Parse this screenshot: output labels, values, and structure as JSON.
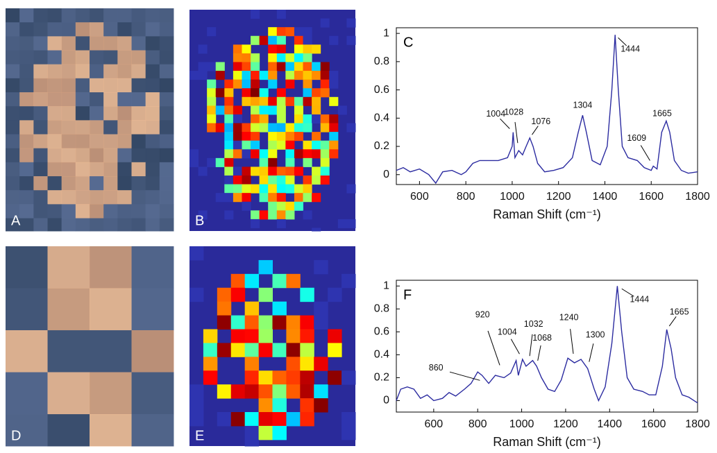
{
  "panels": {
    "labels": [
      "A",
      "B",
      "D",
      "E"
    ]
  },
  "chart_data": [
    {
      "type": "line",
      "title": "C",
      "xlabel": "Raman Shift (cm⁻¹)",
      "color": "#2b2ba0",
      "x": [
        500,
        530,
        560,
        600,
        640,
        670,
        700,
        740,
        780,
        800,
        830,
        860,
        900,
        940,
        980,
        1000,
        1004,
        1012,
        1028,
        1045,
        1060,
        1076,
        1090,
        1110,
        1140,
        1180,
        1220,
        1260,
        1285,
        1304,
        1320,
        1345,
        1380,
        1410,
        1430,
        1444,
        1458,
        1475,
        1500,
        1540,
        1570,
        1600,
        1609,
        1625,
        1645,
        1665,
        1680,
        1700,
        1730,
        1760,
        1800
      ],
      "values": [
        0.03,
        0.05,
        0.02,
        0.04,
        0.0,
        -0.06,
        0.02,
        0.03,
        0.0,
        0.02,
        0.08,
        0.1,
        0.1,
        0.1,
        0.12,
        0.2,
        0.3,
        0.12,
        0.17,
        0.14,
        0.2,
        0.26,
        0.2,
        0.08,
        0.02,
        0.03,
        0.05,
        0.12,
        0.3,
        0.42,
        0.3,
        0.1,
        0.07,
        0.2,
        0.6,
        0.99,
        0.6,
        0.2,
        0.12,
        0.1,
        0.05,
        0.03,
        0.06,
        0.04,
        0.3,
        0.38,
        0.3,
        0.1,
        0.03,
        0.01,
        0.02
      ],
      "xlim": [
        500,
        1800
      ],
      "ylim": [
        -0.07,
        1.04
      ],
      "xticks": [
        600,
        800,
        1000,
        1200,
        1400,
        1600,
        1800
      ],
      "yticks": [
        0,
        0.2,
        0.4,
        0.6,
        0.8,
        1
      ],
      "annotations": [
        {
          "text": "1004",
          "x": 1004,
          "y": 0.3
        },
        {
          "text": "1028",
          "x": 1028,
          "y": 0.17
        },
        {
          "text": "1076",
          "x": 1076,
          "y": 0.26
        },
        {
          "text": "1304",
          "x": 1304,
          "y": 0.42
        },
        {
          "text": "1444",
          "x": 1444,
          "y": 0.99
        },
        {
          "text": "1609",
          "x": 1609,
          "y": 0.06
        },
        {
          "text": "1665",
          "x": 1665,
          "y": 0.38
        }
      ]
    },
    {
      "type": "line",
      "title": "F",
      "xlabel": "Raman Shift (cm⁻¹)",
      "color": "#2b2ba0",
      "x": [
        430,
        450,
        480,
        510,
        540,
        570,
        600,
        640,
        670,
        700,
        740,
        770,
        800,
        820,
        850,
        880,
        920,
        950,
        975,
        985,
        1004,
        1020,
        1032,
        1050,
        1068,
        1090,
        1120,
        1150,
        1180,
        1210,
        1240,
        1270,
        1300,
        1330,
        1350,
        1380,
        1410,
        1435,
        1455,
        1480,
        1510,
        1550,
        1580,
        1610,
        1640,
        1660,
        1680,
        1700,
        1730,
        1760,
        1800
      ],
      "values": [
        0.0,
        0.1,
        0.12,
        0.1,
        0.02,
        0.05,
        0.0,
        0.02,
        0.07,
        0.04,
        0.1,
        0.15,
        0.25,
        0.22,
        0.15,
        0.22,
        0.2,
        0.24,
        0.35,
        0.22,
        0.36,
        0.3,
        0.32,
        0.35,
        0.3,
        0.2,
        0.1,
        0.08,
        0.18,
        0.37,
        0.33,
        0.36,
        0.28,
        0.1,
        0.0,
        0.12,
        0.5,
        1.0,
        0.6,
        0.2,
        0.1,
        0.08,
        0.05,
        0.05,
        0.3,
        0.62,
        0.45,
        0.2,
        0.05,
        0.03,
        -0.02
      ],
      "xlim": [
        430,
        1800
      ],
      "ylim": [
        -0.1,
        1.05
      ],
      "xticks": [
        600,
        800,
        1000,
        1200,
        1400,
        1600,
        1800
      ],
      "yticks": [
        0,
        0.2,
        0.4,
        0.6,
        0.8,
        1
      ],
      "annotations": [
        {
          "text": "860",
          "x": 860,
          "y": 0.15
        },
        {
          "text": "920",
          "x": 920,
          "y": 0.2
        },
        {
          "text": "1004",
          "x": 1004,
          "y": 0.36
        },
        {
          "text": "1032",
          "x": 1032,
          "y": 0.32
        },
        {
          "text": "1068",
          "x": 1068,
          "y": 0.3
        },
        {
          "text": "1240",
          "x": 1240,
          "y": 0.33
        },
        {
          "text": "1300",
          "x": 1300,
          "y": 0.28
        },
        {
          "text": "1444",
          "x": 1435,
          "y": 1.0
        },
        {
          "text": "1665",
          "x": 1660,
          "y": 0.62
        }
      ]
    }
  ]
}
